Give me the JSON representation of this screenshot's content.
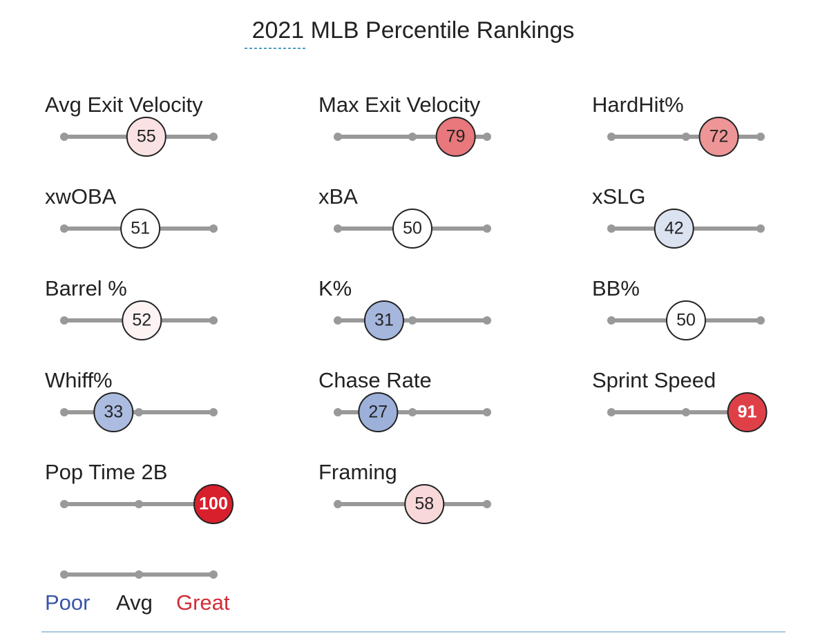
{
  "title": "2021 MLB Percentile Rankings",
  "range": [
    0,
    100
  ],
  "metrics": [
    {
      "label": "Avg Exit Velocity",
      "value": 55,
      "color": "#fbe2e2"
    },
    {
      "label": "Max Exit Velocity",
      "value": 79,
      "color": "#e8787c"
    },
    {
      "label": "HardHit%",
      "value": 72,
      "color": "#ee9598"
    },
    {
      "label": "xwOBA",
      "value": 51,
      "color": "#ffffff"
    },
    {
      "label": "xBA",
      "value": 50,
      "color": "#ffffff"
    },
    {
      "label": "xSLG",
      "value": 42,
      "color": "#dbe2f0"
    },
    {
      "label": "Barrel %",
      "value": 52,
      "color": "#fdf3f3"
    },
    {
      "label": "K%",
      "value": 31,
      "color": "#a6b7de"
    },
    {
      "label": "BB%",
      "value": 50,
      "color": "#ffffff"
    },
    {
      "label": "Whiff%",
      "value": 33,
      "color": "#acbce0"
    },
    {
      "label": "Chase Rate",
      "value": 27,
      "color": "#9cb0da"
    },
    {
      "label": "Sprint Speed",
      "value": 91,
      "color": "#df4048"
    },
    {
      "label": "Pop Time 2B",
      "value": 100,
      "color": "#d8202d"
    },
    {
      "label": "Framing",
      "value": 58,
      "color": "#f8d8d9"
    }
  ],
  "legend": {
    "poor": "Poor",
    "avg": "Avg",
    "great": "Great"
  }
}
